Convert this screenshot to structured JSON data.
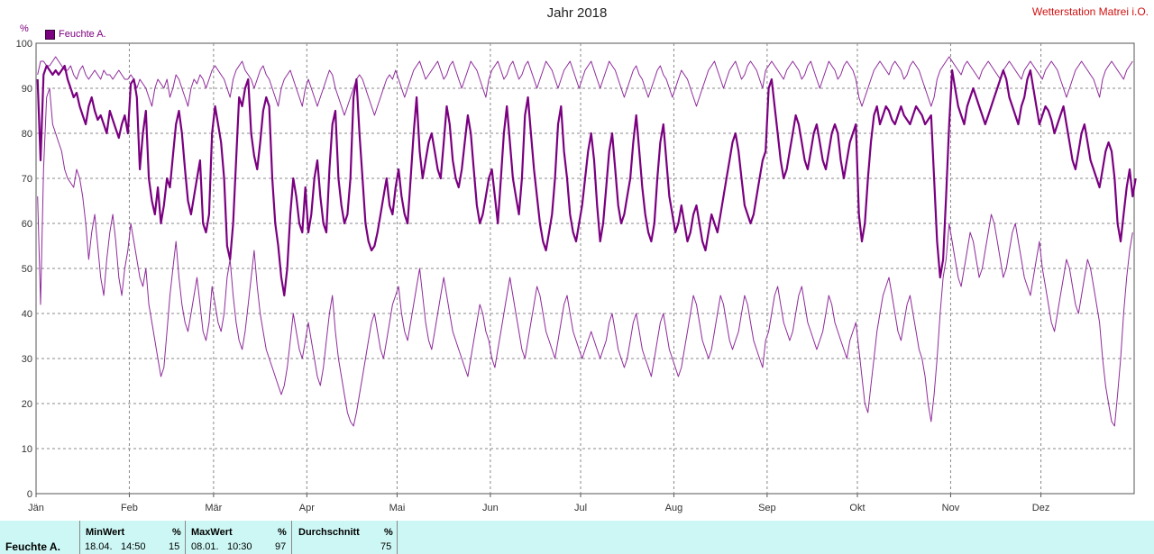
{
  "header": {
    "title": "Jahr 2018",
    "station": "Wetterstation Matrei i.O.",
    "unit": "%"
  },
  "legend": {
    "label": "Feuchte A."
  },
  "colors": {
    "series_main": "#7a0080",
    "series_range": "#8e2a9a",
    "grid": "#888888",
    "axis": "#555555",
    "footer_bg": "#ccf7f4"
  },
  "chart_data": {
    "type": "line",
    "title": "Jahr 2018",
    "ylabel": "%",
    "ylim": [
      0,
      100
    ],
    "yticks": [
      0,
      10,
      20,
      30,
      40,
      50,
      60,
      70,
      80,
      90,
      100
    ],
    "x_range_days": [
      0,
      365
    ],
    "month_labels": [
      "Jän",
      "Feb",
      "Mär",
      "Apr",
      "Mai",
      "Jun",
      "Jul",
      "Aug",
      "Sep",
      "Okt",
      "Nov",
      "Dez"
    ],
    "month_start_days": [
      0,
      31,
      59,
      90,
      120,
      151,
      181,
      212,
      243,
      273,
      304,
      334
    ],
    "grid": true,
    "legend_position": "top-left",
    "series": [
      {
        "name": "Feuchte A.",
        "role": "daily-mean",
        "y": [
          92,
          74,
          93,
          95,
          94,
          93,
          94,
          93,
          94,
          95,
          92,
          90,
          88,
          89,
          86,
          84,
          82,
          86,
          88,
          85,
          83,
          84,
          82,
          80,
          85,
          83,
          81,
          79,
          82,
          84,
          80,
          91,
          92,
          88,
          72,
          80,
          85,
          70,
          65,
          62,
          68,
          60,
          64,
          70,
          68,
          75,
          82,
          85,
          80,
          72,
          65,
          62,
          66,
          70,
          74,
          60,
          58,
          62,
          80,
          86,
          82,
          78,
          70,
          55,
          52,
          60,
          74,
          88,
          86,
          90,
          92,
          80,
          75,
          72,
          78,
          85,
          88,
          86,
          70,
          60,
          55,
          48,
          44,
          50,
          62,
          70,
          66,
          60,
          58,
          68,
          58,
          62,
          70,
          74,
          66,
          60,
          58,
          72,
          82,
          85,
          70,
          64,
          60,
          62,
          70,
          88,
          92,
          80,
          70,
          60,
          56,
          54,
          55,
          58,
          62,
          66,
          70,
          64,
          62,
          68,
          72,
          66,
          62,
          60,
          70,
          80,
          88,
          76,
          70,
          74,
          78,
          80,
          76,
          72,
          70,
          78,
          86,
          82,
          74,
          70,
          68,
          72,
          78,
          84,
          80,
          72,
          64,
          60,
          62,
          66,
          70,
          72,
          66,
          60,
          70,
          80,
          86,
          78,
          70,
          66,
          62,
          70,
          84,
          88,
          80,
          72,
          66,
          60,
          56,
          54,
          58,
          62,
          70,
          82,
          86,
          76,
          70,
          62,
          58,
          56,
          60,
          64,
          70,
          76,
          80,
          74,
          64,
          56,
          60,
          68,
          76,
          80,
          72,
          64,
          60,
          62,
          66,
          70,
          78,
          84,
          76,
          68,
          62,
          58,
          56,
          60,
          70,
          78,
          82,
          74,
          66,
          62,
          58,
          60,
          64,
          60,
          56,
          58,
          62,
          64,
          60,
          56,
          54,
          58,
          62,
          60,
          58,
          62,
          66,
          70,
          74,
          78,
          80,
          76,
          70,
          64,
          62,
          60,
          62,
          66,
          70,
          74,
          76,
          90,
          92,
          86,
          80,
          74,
          70,
          72,
          76,
          80,
          84,
          82,
          78,
          74,
          72,
          76,
          80,
          82,
          78,
          74,
          72,
          76,
          80,
          82,
          80,
          74,
          70,
          74,
          78,
          80,
          82,
          62,
          56,
          60,
          70,
          78,
          84,
          86,
          82,
          84,
          86,
          85,
          83,
          82,
          84,
          86,
          84,
          83,
          82,
          84,
          86,
          85,
          84,
          82,
          83,
          84,
          70,
          56,
          48,
          52,
          66,
          82,
          94,
          90,
          86,
          84,
          82,
          86,
          88,
          90,
          88,
          86,
          84,
          82,
          84,
          86,
          88,
          90,
          92,
          94,
          92,
          88,
          86,
          84,
          82,
          86,
          88,
          92,
          94,
          90,
          86,
          82,
          84,
          86,
          85,
          83,
          80,
          82,
          84,
          86,
          82,
          78,
          74,
          72,
          76,
          80,
          82,
          78,
          74,
          72,
          70,
          68,
          72,
          76,
          78,
          76,
          70,
          60,
          56,
          62,
          68,
          72,
          66,
          70
        ]
      },
      {
        "name": "Feuchte A.",
        "role": "daily-max",
        "y": [
          93,
          96,
          96,
          95,
          95,
          96,
          97,
          96,
          95,
          94,
          94,
          95,
          93,
          92,
          94,
          95,
          93,
          92,
          93,
          94,
          93,
          92,
          94,
          93,
          93,
          92,
          93,
          94,
          93,
          92,
          92,
          93,
          92,
          90,
          92,
          91,
          90,
          88,
          86,
          90,
          92,
          91,
          90,
          92,
          88,
          90,
          93,
          92,
          90,
          88,
          86,
          90,
          92,
          91,
          93,
          92,
          90,
          92,
          94,
          95,
          94,
          93,
          92,
          90,
          88,
          92,
          94,
          95,
          96,
          94,
          93,
          92,
          90,
          92,
          94,
          95,
          93,
          92,
          90,
          88,
          86,
          90,
          92,
          93,
          94,
          92,
          90,
          88,
          86,
          90,
          92,
          90,
          88,
          86,
          88,
          90,
          92,
          94,
          93,
          90,
          88,
          86,
          84,
          86,
          88,
          90,
          92,
          93,
          92,
          90,
          88,
          86,
          84,
          86,
          88,
          90,
          92,
          93,
          92,
          94,
          92,
          90,
          88,
          90,
          92,
          94,
          95,
          96,
          94,
          92,
          93,
          94,
          95,
          96,
          94,
          92,
          93,
          95,
          96,
          94,
          92,
          90,
          92,
          94,
          96,
          95,
          94,
          92,
          90,
          88,
          92,
          94,
          95,
          96,
          94,
          92,
          93,
          95,
          96,
          94,
          92,
          93,
          95,
          96,
          94,
          92,
          90,
          92,
          94,
          96,
          95,
          94,
          92,
          90,
          92,
          94,
          95,
          96,
          94,
          92,
          90,
          92,
          94,
          95,
          96,
          94,
          92,
          90,
          92,
          94,
          96,
          95,
          94,
          92,
          90,
          88,
          90,
          92,
          94,
          95,
          93,
          92,
          90,
          88,
          90,
          92,
          94,
          95,
          93,
          92,
          90,
          88,
          90,
          92,
          94,
          93,
          92,
          90,
          88,
          86,
          88,
          90,
          92,
          94,
          95,
          96,
          94,
          92,
          90,
          92,
          94,
          95,
          96,
          94,
          92,
          93,
          95,
          96,
          95,
          94,
          92,
          90,
          94,
          95,
          96,
          95,
          94,
          93,
          92,
          94,
          95,
          96,
          95,
          94,
          92,
          93,
          95,
          96,
          94,
          92,
          90,
          92,
          94,
          96,
          95,
          94,
          92,
          93,
          95,
          96,
          95,
          94,
          92,
          88,
          86,
          88,
          90,
          92,
          94,
          95,
          96,
          95,
          94,
          93,
          95,
          96,
          95,
          94,
          92,
          93,
          95,
          96,
          95,
          94,
          92,
          90,
          88,
          86,
          88,
          92,
          94,
          95,
          96,
          97,
          96,
          95,
          94,
          93,
          95,
          96,
          95,
          94,
          93,
          92,
          94,
          95,
          96,
          95,
          94,
          93,
          92,
          94,
          95,
          96,
          95,
          94,
          93,
          92,
          94,
          95,
          96,
          95,
          94,
          93,
          92,
          94,
          95,
          96,
          95,
          94,
          92,
          90,
          88,
          90,
          92,
          94,
          95,
          96,
          95,
          94,
          93,
          92,
          90,
          88,
          92,
          94,
          95,
          96,
          95,
          94,
          93,
          92,
          94,
          95,
          96
        ]
      },
      {
        "name": "Feuchte A.",
        "role": "daily-min",
        "y": [
          66,
          42,
          72,
          88,
          90,
          82,
          80,
          78,
          76,
          72,
          70,
          69,
          68,
          72,
          70,
          66,
          60,
          52,
          58,
          62,
          55,
          48,
          44,
          52,
          58,
          62,
          56,
          48,
          44,
          50,
          54,
          60,
          56,
          52,
          48,
          46,
          50,
          42,
          38,
          34,
          30,
          26,
          28,
          36,
          44,
          50,
          56,
          48,
          42,
          38,
          36,
          40,
          44,
          48,
          42,
          36,
          34,
          38,
          46,
          42,
          38,
          36,
          40,
          48,
          52,
          44,
          38,
          34,
          32,
          36,
          42,
          48,
          54,
          46,
          40,
          36,
          32,
          30,
          28,
          26,
          24,
          22,
          24,
          28,
          34,
          40,
          36,
          32,
          30,
          34,
          38,
          34,
          30,
          26,
          24,
          28,
          34,
          40,
          44,
          36,
          30,
          26,
          22,
          18,
          16,
          15,
          18,
          22,
          26,
          30,
          34,
          38,
          40,
          36,
          32,
          30,
          34,
          38,
          42,
          44,
          46,
          40,
          36,
          34,
          38,
          42,
          46,
          50,
          44,
          38,
          34,
          32,
          36,
          40,
          44,
          48,
          44,
          40,
          36,
          34,
          32,
          30,
          28,
          26,
          30,
          34,
          38,
          42,
          40,
          36,
          34,
          30,
          28,
          32,
          36,
          40,
          44,
          48,
          44,
          40,
          36,
          32,
          30,
          34,
          38,
          42,
          46,
          44,
          40,
          36,
          34,
          32,
          30,
          34,
          38,
          42,
          44,
          40,
          36,
          34,
          32,
          30,
          32,
          34,
          36,
          34,
          32,
          30,
          32,
          34,
          38,
          40,
          36,
          32,
          30,
          28,
          30,
          34,
          38,
          40,
          36,
          32,
          30,
          28,
          26,
          30,
          34,
          38,
          40,
          36,
          32,
          30,
          28,
          26,
          28,
          32,
          36,
          40,
          44,
          42,
          38,
          34,
          32,
          30,
          32,
          36,
          40,
          44,
          42,
          38,
          34,
          32,
          34,
          36,
          40,
          44,
          42,
          38,
          34,
          32,
          30,
          28,
          34,
          36,
          40,
          44,
          46,
          42,
          38,
          36,
          34,
          36,
          40,
          44,
          46,
          42,
          38,
          36,
          34,
          32,
          34,
          36,
          40,
          44,
          42,
          38,
          36,
          34,
          32,
          30,
          34,
          36,
          38,
          32,
          26,
          20,
          18,
          24,
          30,
          36,
          40,
          44,
          46,
          48,
          44,
          40,
          36,
          34,
          38,
          42,
          44,
          40,
          36,
          32,
          30,
          26,
          20,
          16,
          22,
          30,
          40,
          48,
          52,
          60,
          56,
          52,
          48,
          46,
          50,
          54,
          58,
          56,
          52,
          48,
          50,
          54,
          58,
          62,
          60,
          56,
          52,
          48,
          50,
          54,
          58,
          60,
          56,
          52,
          48,
          46,
          44,
          48,
          52,
          56,
          50,
          46,
          42,
          38,
          36,
          40,
          44,
          48,
          52,
          50,
          46,
          42,
          40,
          44,
          48,
          52,
          50,
          46,
          42,
          38,
          30,
          24,
          20,
          16,
          15,
          22,
          30,
          40,
          48,
          54,
          58
        ]
      }
    ]
  },
  "footer": {
    "row_label": "Feuchte A.",
    "columns": [
      {
        "header": "MinWert",
        "unit": "%",
        "date": "18.04.",
        "time": "14:50",
        "value": "15"
      },
      {
        "header": "MaxWert",
        "unit": "%",
        "date": "08.01.",
        "time": "10:30",
        "value": "97"
      },
      {
        "header": "Durchschnitt",
        "unit": "%",
        "date": "",
        "time": "",
        "value": "75"
      }
    ]
  }
}
